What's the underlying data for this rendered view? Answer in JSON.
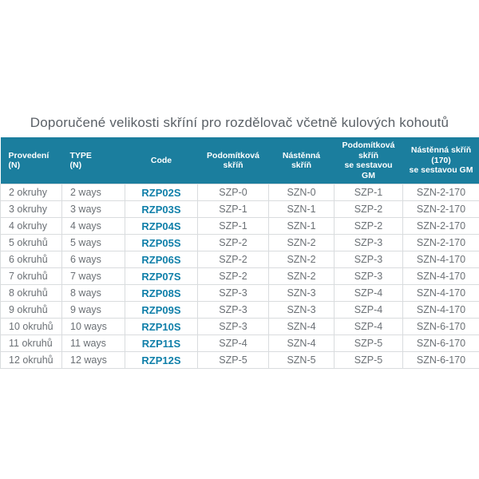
{
  "title": "Doporučené velikosti skříní pro rozdělovač včetně kulových kohoutů",
  "colors": {
    "header_bg": "#1b7e9e",
    "header_text": "#ffffff",
    "title_text": "#5b6167",
    "body_text": "#6b7075",
    "code_text": "#0f7fa9",
    "border": "#d9dcde"
  },
  "table": {
    "columns": [
      {
        "label": "Provedení\n(N)",
        "align": "left",
        "emphasis": false
      },
      {
        "label": "TYPE\n(N)",
        "align": "left",
        "emphasis": false
      },
      {
        "label": "Code",
        "align": "center",
        "emphasis": true
      },
      {
        "label": "Podomítková\nskříň",
        "align": "center",
        "emphasis": false
      },
      {
        "label": "Nástěnná\nskříň",
        "align": "center",
        "emphasis": false
      },
      {
        "label": "Podomítková\nskříň\nse sestavou\nGM",
        "align": "center",
        "emphasis": false
      },
      {
        "label": "Nástěnná skříň\n(170)\nse sestavou GM",
        "align": "center",
        "emphasis": false
      }
    ],
    "rows": [
      [
        "2 okruhy",
        "2 ways",
        "RZP02S",
        "SZP-0",
        "SZN-0",
        "SZP-1",
        "SZN-2-170"
      ],
      [
        "3 okruhy",
        "3 ways",
        "RZP03S",
        "SZP-1",
        "SZN-1",
        "SZP-2",
        "SZN-2-170"
      ],
      [
        "4 okruhy",
        "4 ways",
        "RZP04S",
        "SZP-1",
        "SZN-1",
        "SZP-2",
        "SZN-2-170"
      ],
      [
        "5 okruhů",
        "5 ways",
        "RZP05S",
        "SZP-2",
        "SZN-2",
        "SZP-3",
        "SZN-2-170"
      ],
      [
        "6 okruhů",
        "6 ways",
        "RZP06S",
        "SZP-2",
        "SZN-2",
        "SZP-3",
        "SZN-4-170"
      ],
      [
        "7 okruhů",
        "7 ways",
        "RZP07S",
        "SZP-2",
        "SZN-2",
        "SZP-3",
        "SZN-4-170"
      ],
      [
        "8 okruhů",
        "8 ways",
        "RZP08S",
        "SZP-3",
        "SZN-3",
        "SZP-4",
        "SZN-4-170"
      ],
      [
        "9 okruhů",
        "9 ways",
        "RZP09S",
        "SZP-3",
        "SZN-3",
        "SZP-4",
        "SZN-4-170"
      ],
      [
        "10 okruhů",
        "10 ways",
        "RZP10S",
        "SZP-3",
        "SZN-4",
        "SZP-4",
        "SZN-6-170"
      ],
      [
        "11 okruhů",
        "11 ways",
        "RZP11S",
        "SZP-4",
        "SZN-4",
        "SZP-5",
        "SZN-6-170"
      ],
      [
        "12 okruhů",
        "12 ways",
        "RZP12S",
        "SZP-5",
        "SZN-5",
        "SZP-5",
        "SZN-6-170"
      ]
    ]
  }
}
